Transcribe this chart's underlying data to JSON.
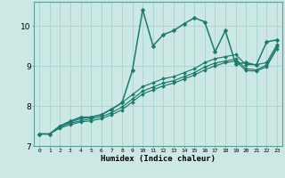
{
  "xlabel": "Humidex (Indice chaleur)",
  "bg_color": "#cce8e4",
  "grid_color": "#a8d4cf",
  "line_color": "#1a7a6e",
  "xlim": [
    -0.5,
    23.5
  ],
  "ylim": [
    7.0,
    10.6
  ],
  "yticks": [
    7,
    8,
    9,
    10
  ],
  "xticks": [
    0,
    1,
    2,
    3,
    4,
    5,
    6,
    7,
    8,
    9,
    10,
    11,
    12,
    13,
    14,
    15,
    16,
    17,
    18,
    19,
    20,
    21,
    22,
    23
  ],
  "lines": [
    [
      7.3,
      7.3,
      7.5,
      7.62,
      7.72,
      7.72,
      7.78,
      7.92,
      8.08,
      8.88,
      10.4,
      9.5,
      9.78,
      9.88,
      10.05,
      10.2,
      10.1,
      9.35,
      9.88,
      9.05,
      9.08,
      9.02,
      9.6,
      9.65
    ],
    [
      7.3,
      7.3,
      7.5,
      7.6,
      7.68,
      7.72,
      7.78,
      7.92,
      8.08,
      8.28,
      8.48,
      8.58,
      8.68,
      8.73,
      8.83,
      8.93,
      9.08,
      9.18,
      9.23,
      9.28,
      9.03,
      9.03,
      9.08,
      9.53
    ],
    [
      7.3,
      7.3,
      7.48,
      7.57,
      7.63,
      7.68,
      7.73,
      7.83,
      7.97,
      8.17,
      8.37,
      8.47,
      8.57,
      8.63,
      8.73,
      8.83,
      8.97,
      9.07,
      9.12,
      9.17,
      8.93,
      8.9,
      9.02,
      9.48
    ],
    [
      7.3,
      7.3,
      7.45,
      7.53,
      7.6,
      7.63,
      7.68,
      7.78,
      7.9,
      8.1,
      8.3,
      8.4,
      8.5,
      8.57,
      8.67,
      8.77,
      8.9,
      9.0,
      9.08,
      9.12,
      8.88,
      8.87,
      8.98,
      9.43
    ]
  ]
}
